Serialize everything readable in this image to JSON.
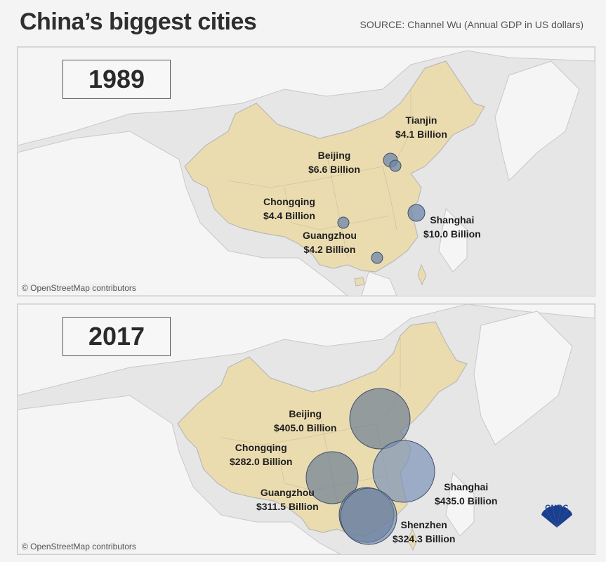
{
  "header": {
    "title": "China’s biggest cities",
    "source": "SOURCE: Channel Wu (Annual GDP in US dollars)"
  },
  "colors": {
    "land": "#ebdcb0",
    "sea": "#e6e6e6",
    "bubble": "#6f86a8",
    "bubble_stroke": "#3d4f6b"
  },
  "panels": [
    {
      "year": "1989",
      "attribution": "© OpenStreetMap contributors",
      "cities": [
        {
          "name": "Tianjin",
          "value": "$4.1 Billion",
          "gdp": 4.1
        },
        {
          "name": "Beijing",
          "value": "$6.6 Billion",
          "gdp": 6.6
        },
        {
          "name": "Chongqing",
          "value": "$4.4 Billion",
          "gdp": 4.4
        },
        {
          "name": "Guangzhou",
          "value": "$4.2 Billion",
          "gdp": 4.2
        },
        {
          "name": "Shanghai",
          "value": "$10.0 Billion",
          "gdp": 10.0
        }
      ]
    },
    {
      "year": "2017",
      "attribution": "© OpenStreetMap contributors",
      "cities": [
        {
          "name": "Beijing",
          "value": "$405.0 Billion",
          "gdp": 405.0
        },
        {
          "name": "Chongqing",
          "value": "$282.0 Billion",
          "gdp": 282.0
        },
        {
          "name": "Guangzhou",
          "value": "$311.5 Billion",
          "gdp": 311.5
        },
        {
          "name": "Shanghai",
          "value": "$435.0 Billion",
          "gdp": 435.0
        },
        {
          "name": "Shenzhen",
          "value": "$324.3 Billion",
          "gdp": 324.3
        }
      ]
    }
  ],
  "logo": {
    "text": "CNBC"
  }
}
